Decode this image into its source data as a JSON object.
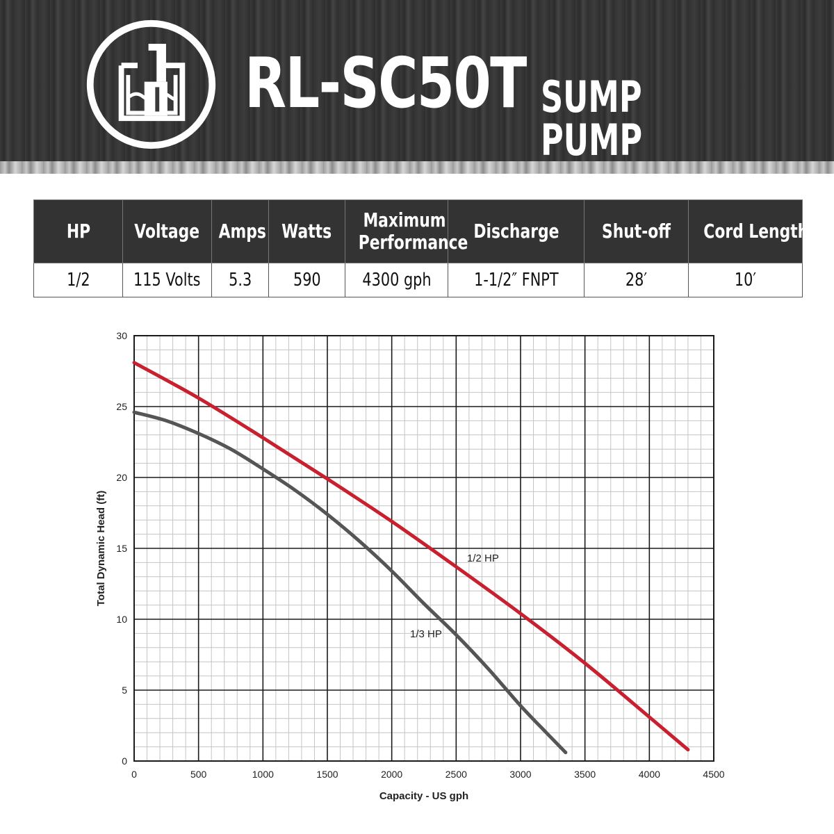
{
  "header": {
    "model": "RL-SC50T",
    "subtitle": "SUMP PUMP"
  },
  "specs": {
    "headers": [
      "HP",
      "Voltage",
      "Amps",
      "Watts",
      "Maximum Performance",
      "Discharge",
      "Shut-off",
      "Cord Length"
    ],
    "values": [
      "1/2",
      "115 Volts",
      "5.3",
      "590",
      "4300 gph",
      "1-1/2″ FNPT",
      "28′",
      "10′"
    ]
  },
  "chart_data": {
    "type": "line",
    "title": "",
    "xlabel": "Capacity - US gph",
    "ylabel": "Total Dynamic Head (ft)",
    "xlim": [
      0,
      4500
    ],
    "ylim": [
      0,
      30
    ],
    "xticks": [
      0,
      500,
      1000,
      1500,
      2000,
      2500,
      3000,
      3500,
      4000,
      4500
    ],
    "yticks": [
      0,
      5,
      10,
      15,
      20,
      25,
      30
    ],
    "grid": true,
    "series": [
      {
        "name": "1/2 HP",
        "color": "#c8202e",
        "x": [
          0,
          500,
          1000,
          1500,
          2000,
          2500,
          3000,
          3500,
          4000,
          4300
        ],
        "y": [
          28.1,
          25.6,
          22.8,
          19.9,
          16.9,
          13.7,
          10.4,
          6.9,
          3.1,
          0.8
        ]
      },
      {
        "name": "1/3 HP",
        "color": "#555555",
        "x": [
          0,
          250,
          500,
          750,
          1000,
          1250,
          1500,
          1750,
          2000,
          2250,
          2500,
          2750,
          3000,
          3200,
          3350
        ],
        "y": [
          24.6,
          24.0,
          23.1,
          22.0,
          20.6,
          19.1,
          17.4,
          15.5,
          13.4,
          11.1,
          8.9,
          6.5,
          3.9,
          2.0,
          0.6
        ]
      }
    ]
  }
}
